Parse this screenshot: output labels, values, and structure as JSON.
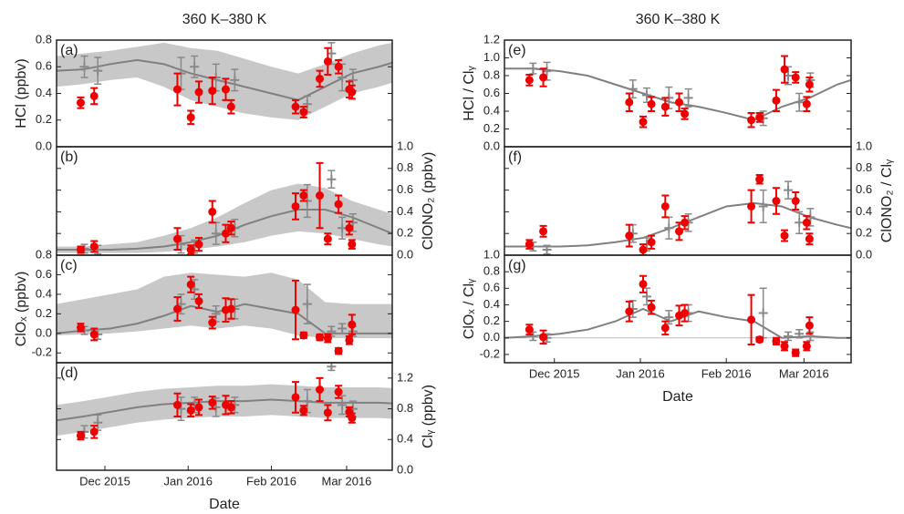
{
  "chart_data": [
    {
      "type": "scatter",
      "title": "360 K–380 K",
      "panel_label": "(a)",
      "ylabel": "HCl (ppbv)",
      "axis_side": "left",
      "xlim": [
        0,
        125
      ],
      "ylim": [
        0,
        0.8
      ],
      "yticks": [
        {
          "value": 0,
          "label": "0.0"
        },
        0.2,
        0.4,
        0.6,
        0.8
      ],
      "model": {
        "color": "#808080",
        "band_color": "#c8c8c8",
        "x": [
          0,
          10,
          20,
          30,
          40,
          50,
          60,
          70,
          80,
          90,
          100,
          110,
          120,
          125
        ],
        "values": [
          0.57,
          0.58,
          0.62,
          0.65,
          0.62,
          0.55,
          0.5,
          0.45,
          0.4,
          0.35,
          0.45,
          0.55,
          0.6,
          0.63
        ],
        "lower": [
          0.45,
          0.47,
          0.5,
          0.52,
          0.45,
          0.35,
          0.3,
          0.25,
          0.22,
          0.2,
          0.3,
          0.4,
          0.45,
          0.48
        ],
        "upper": [
          0.68,
          0.7,
          0.72,
          0.75,
          0.78,
          0.74,
          0.72,
          0.66,
          0.6,
          0.55,
          0.62,
          0.7,
          0.76,
          0.78
        ]
      },
      "obs": {
        "color": "#ee0000",
        "x": [
          9,
          14,
          45,
          50,
          53,
          58,
          63,
          65,
          89,
          92,
          98,
          101,
          105,
          109,
          110
        ],
        "values": [
          0.33,
          0.38,
          0.43,
          0.22,
          0.41,
          0.42,
          0.43,
          0.3,
          0.3,
          0.26,
          0.51,
          0.64,
          0.6,
          0.43,
          0.41
        ],
        "errors": [
          0.04,
          0.06,
          0.12,
          0.05,
          0.08,
          0.1,
          0.08,
          0.05,
          0.05,
          0.04,
          0.06,
          0.1,
          0.05,
          0.06,
          0.05
        ]
      },
      "obs2": {
        "color": "#888888",
        "x": [
          9,
          14,
          45,
          50,
          58,
          65,
          92,
          101,
          105,
          109
        ],
        "values": [
          0.6,
          0.57,
          0.55,
          0.6,
          0.52,
          0.5,
          0.32,
          0.7,
          0.52,
          0.5
        ],
        "errors": [
          0.08,
          0.1,
          0.12,
          0.08,
          0.1,
          0.08,
          0.06,
          0.08,
          0.1,
          0.08
        ]
      }
    },
    {
      "type": "scatter",
      "panel_label": "(b)",
      "ylabel": "ClONO₂ (ppbv)",
      "axis_side": "right",
      "xlim": [
        0,
        125
      ],
      "ylim": [
        0,
        1.0
      ],
      "yticks": [
        {
          "value": 0,
          "label": "0.0"
        },
        0.2,
        0.4,
        0.6,
        0.8,
        {
          "value": 1,
          "label": "1.0"
        }
      ],
      "model": {
        "color": "#808080",
        "band_color": "#c8c8c8",
        "x": [
          0,
          10,
          20,
          30,
          40,
          50,
          60,
          70,
          80,
          90,
          100,
          110,
          120,
          125
        ],
        "values": [
          0.05,
          0.05,
          0.05,
          0.06,
          0.08,
          0.12,
          0.18,
          0.28,
          0.36,
          0.42,
          0.42,
          0.35,
          0.25,
          0.2
        ],
        "lower": [
          0.02,
          0.02,
          0.02,
          0.02,
          0.03,
          0.05,
          0.08,
          0.12,
          0.18,
          0.22,
          0.2,
          0.15,
          0.1,
          0.08
        ],
        "upper": [
          0.08,
          0.08,
          0.1,
          0.12,
          0.18,
          0.25,
          0.35,
          0.48,
          0.6,
          0.66,
          0.62,
          0.5,
          0.42,
          0.38
        ]
      },
      "obs": {
        "color": "#ee0000",
        "x": [
          9,
          14,
          45,
          50,
          53,
          58,
          63,
          65,
          89,
          92,
          98,
          101,
          105,
          109,
          110
        ],
        "values": [
          0.05,
          0.08,
          0.15,
          0.05,
          0.1,
          0.4,
          0.2,
          0.25,
          0.45,
          0.55,
          0.55,
          0.15,
          0.47,
          0.25,
          0.1
        ],
        "errors": [
          0.03,
          0.05,
          0.1,
          0.04,
          0.06,
          0.1,
          0.08,
          0.06,
          0.12,
          0.05,
          0.3,
          0.05,
          0.08,
          0.06,
          0.04
        ]
      },
      "obs2": {
        "color": "#888888",
        "x": [
          9,
          14,
          45,
          50,
          58,
          65,
          92,
          101,
          105,
          109
        ],
        "values": [
          0.06,
          0.05,
          0.1,
          0.08,
          0.2,
          0.25,
          0.5,
          0.7,
          0.25,
          0.3
        ],
        "errors": [
          0.04,
          0.04,
          0.08,
          0.06,
          0.1,
          0.08,
          0.15,
          0.08,
          0.1,
          0.08
        ]
      }
    },
    {
      "type": "scatter",
      "panel_label": "(c)",
      "ylabel": "ClOₓ (ppbv)",
      "axis_side": "left",
      "xlim": [
        0,
        125
      ],
      "ylim": [
        -0.3,
        0.8
      ],
      "yticks": [
        -0.2,
        {
          "value": 0,
          "label": "0.0"
        },
        0.2,
        0.4,
        0.6,
        0.8
      ],
      "model": {
        "color": "#808080",
        "band_color": "#c8c8c8",
        "x": [
          0,
          10,
          20,
          30,
          40,
          50,
          60,
          70,
          80,
          90,
          100,
          110,
          120,
          125
        ],
        "values": [
          0,
          0.03,
          0.05,
          0.1,
          0.18,
          0.28,
          0.22,
          0.3,
          0.25,
          0.2,
          0,
          0,
          0,
          0
        ],
        "lower": [
          -0.02,
          -0.01,
          0,
          0.02,
          0.05,
          0.08,
          0.05,
          0.08,
          0.05,
          -0.02,
          -0.05,
          -0.05,
          -0.05,
          -0.05
        ],
        "upper": [
          0.3,
          0.35,
          0.4,
          0.45,
          0.58,
          0.62,
          0.6,
          0.58,
          0.62,
          0.55,
          0.32,
          0.3,
          0.3,
          0.3
        ]
      },
      "obs": {
        "color": "#ee0000",
        "x": [
          9,
          14,
          45,
          50,
          53,
          58,
          63,
          65,
          89,
          92,
          98,
          101,
          105,
          109,
          110
        ],
        "values": [
          0.06,
          -0.01,
          0.25,
          0.5,
          0.33,
          0.11,
          0.24,
          0.25,
          0.24,
          -0.02,
          -0.04,
          -0.05,
          -0.18,
          -0.07,
          0.09
        ],
        "errors": [
          0.04,
          0.06,
          0.12,
          0.08,
          0.07,
          0.06,
          0.12,
          0.1,
          0.3,
          0.03,
          0.03,
          0.04,
          0.03,
          0.04,
          0.1
        ]
      },
      "obs2": {
        "color": "#888888",
        "x": [
          9,
          14,
          45,
          50,
          58,
          65,
          92,
          101,
          105,
          109
        ],
        "values": [
          0.03,
          -0.01,
          0.3,
          0.45,
          0.2,
          0.25,
          0.3,
          0.02,
          0.05,
          0.02
        ],
        "errors": [
          0.04,
          0.05,
          0.1,
          0.1,
          0.08,
          0.1,
          0.2,
          0.05,
          0.05,
          0.05
        ]
      }
    },
    {
      "type": "scatter",
      "panel_label": "(d)",
      "ylabel": "Clᵧ (ppbv)",
      "axis_side": "right",
      "xlabel": "Date",
      "xlim": [
        0,
        125
      ],
      "xticks": [
        {
          "value": 18,
          "label": "Dec 2015"
        },
        {
          "value": 49,
          "label": "Jan 2016"
        },
        {
          "value": 80,
          "label": "Feb 2016"
        },
        {
          "value": 108,
          "label": "Mar 2016"
        }
      ],
      "ylim": [
        0,
        1.4
      ],
      "yticks": [
        {
          "value": 0,
          "label": "0.0"
        },
        0.4,
        0.8,
        1.2
      ],
      "model": {
        "color": "#808080",
        "band_color": "#c8c8c8",
        "x": [
          0,
          10,
          20,
          30,
          40,
          50,
          60,
          70,
          80,
          90,
          100,
          110,
          120,
          125
        ],
        "values": [
          0.65,
          0.7,
          0.76,
          0.82,
          0.86,
          0.88,
          0.9,
          0.9,
          0.92,
          0.9,
          0.88,
          0.88,
          0.88,
          0.87
        ],
        "lower": [
          0.45,
          0.5,
          0.56,
          0.62,
          0.66,
          0.68,
          0.7,
          0.7,
          0.72,
          0.7,
          0.68,
          0.68,
          0.68,
          0.67
        ],
        "upper": [
          0.85,
          0.9,
          0.96,
          1.02,
          1.06,
          1.08,
          1.1,
          1.1,
          1.12,
          1.1,
          1.08,
          1.08,
          1.08,
          1.07
        ]
      },
      "obs": {
        "color": "#ee0000",
        "x": [
          9,
          14,
          45,
          50,
          53,
          58,
          63,
          65,
          89,
          92,
          98,
          101,
          105,
          109,
          110
        ],
        "values": [
          0.45,
          0.5,
          0.85,
          0.78,
          0.82,
          0.88,
          0.85,
          0.82,
          0.95,
          0.78,
          1.05,
          0.75,
          1.02,
          0.76,
          0.68
        ],
        "errors": [
          0.05,
          0.08,
          0.15,
          0.08,
          0.1,
          0.08,
          0.12,
          0.08,
          0.2,
          0.06,
          0.15,
          0.1,
          0.08,
          0.06,
          0.06
        ]
      },
      "obs2": {
        "color": "#888888",
        "x": [
          9,
          14,
          45,
          50,
          58,
          65,
          92,
          101,
          105,
          109
        ],
        "values": [
          0.5,
          0.62,
          0.8,
          0.85,
          0.82,
          0.85,
          0.9,
          1.35,
          0.85,
          0.8
        ],
        "errors": [
          0.08,
          0.1,
          0.15,
          0.1,
          0.12,
          0.1,
          0.15,
          0.05,
          0.12,
          0.1
        ]
      }
    },
    {
      "type": "scatter",
      "title": "360 K–380 K",
      "panel_label": "(e)",
      "ylabel": "HCl / Clᵧ",
      "axis_side": "left",
      "xlim": [
        0,
        125
      ],
      "ylim": [
        0,
        1.2
      ],
      "yticks": [
        {
          "value": 0,
          "label": "0.0"
        },
        0.2,
        0.4,
        0.6,
        0.8,
        {
          "value": 1,
          "label": "1.0"
        },
        1.2
      ],
      "model": {
        "color": "#808080",
        "x": [
          0,
          10,
          20,
          30,
          40,
          50,
          60,
          70,
          80,
          90,
          100,
          110,
          120,
          125
        ],
        "values": [
          0.88,
          0.88,
          0.85,
          0.8,
          0.7,
          0.6,
          0.5,
          0.45,
          0.38,
          0.3,
          0.45,
          0.55,
          0.7,
          0.75
        ]
      },
      "obs": {
        "color": "#ee0000",
        "x": [
          9,
          14,
          45,
          50,
          53,
          58,
          63,
          65,
          89,
          92,
          98,
          101,
          105,
          109,
          110
        ],
        "values": [
          0.75,
          0.78,
          0.5,
          0.28,
          0.48,
          0.45,
          0.5,
          0.37,
          0.3,
          0.33,
          0.52,
          0.87,
          0.78,
          0.48,
          0.7
        ],
        "errors": [
          0.06,
          0.1,
          0.1,
          0.06,
          0.08,
          0.1,
          0.1,
          0.06,
          0.08,
          0.05,
          0.12,
          0.15,
          0.06,
          0.08,
          0.08
        ]
      },
      "obs2": {
        "color": "#888888",
        "x": [
          9,
          14,
          45,
          50,
          58,
          65,
          92,
          101,
          105,
          109
        ],
        "values": [
          0.88,
          0.85,
          0.65,
          0.58,
          0.55,
          0.55,
          0.32,
          0.8,
          0.5,
          0.75
        ],
        "errors": [
          0.06,
          0.1,
          0.1,
          0.08,
          0.12,
          0.1,
          0.08,
          0.1,
          0.1,
          0.08
        ]
      }
    },
    {
      "type": "scatter",
      "panel_label": "(f)",
      "ylabel": "ClONO₂ / Clᵧ",
      "axis_side": "right",
      "xlim": [
        0,
        125
      ],
      "ylim": [
        0,
        1.0
      ],
      "yticks": [
        {
          "value": 0,
          "label": "0.0"
        },
        0.2,
        0.4,
        0.6,
        0.8,
        {
          "value": 1,
          "label": "1.0"
        }
      ],
      "model": {
        "color": "#808080",
        "x": [
          0,
          10,
          20,
          30,
          40,
          50,
          60,
          70,
          80,
          90,
          100,
          110,
          120,
          125
        ],
        "values": [
          0.08,
          0.08,
          0.08,
          0.09,
          0.12,
          0.16,
          0.25,
          0.35,
          0.45,
          0.48,
          0.45,
          0.35,
          0.28,
          0.25
        ]
      },
      "obs": {
        "color": "#ee0000",
        "x": [
          9,
          14,
          45,
          50,
          53,
          58,
          63,
          65,
          89,
          92,
          98,
          101,
          105,
          109,
          110
        ],
        "values": [
          0.1,
          0.22,
          0.18,
          0.05,
          0.12,
          0.45,
          0.22,
          0.3,
          0.45,
          0.7,
          0.5,
          0.18,
          0.5,
          0.3,
          0.15
        ],
        "errors": [
          0.04,
          0.05,
          0.1,
          0.05,
          0.06,
          0.1,
          0.08,
          0.06,
          0.15,
          0.04,
          0.12,
          0.05,
          0.08,
          0.06,
          0.05
        ]
      },
      "obs2": {
        "color": "#888888",
        "x": [
          9,
          14,
          45,
          50,
          58,
          65,
          92,
          101,
          105,
          109
        ],
        "values": [
          0.08,
          0.05,
          0.2,
          0.1,
          0.25,
          0.3,
          0.45,
          0.6,
          0.3,
          0.35
        ],
        "errors": [
          0.04,
          0.04,
          0.08,
          0.06,
          0.1,
          0.08,
          0.15,
          0.08,
          0.1,
          0.08
        ]
      }
    },
    {
      "type": "scatter",
      "panel_label": "(g)",
      "ylabel": "ClOₓ / Clᵧ",
      "axis_side": "left",
      "xlabel": "Date",
      "zero_line": true,
      "xlim": [
        0,
        125
      ],
      "xticks": [
        {
          "value": 18,
          "label": "Dec 2015"
        },
        {
          "value": 49,
          "label": "Jan 2016"
        },
        {
          "value": 80,
          "label": "Feb 2016"
        },
        {
          "value": 108,
          "label": "Mar 2016"
        }
      ],
      "ylim": [
        -0.3,
        1.0
      ],
      "yticks": [
        -0.2,
        {
          "value": 0,
          "label": "0.0"
        },
        0.2,
        0.4,
        0.6,
        0.8,
        {
          "value": 1,
          "label": "1.0"
        }
      ],
      "model": {
        "color": "#808080",
        "x": [
          0,
          10,
          20,
          30,
          40,
          50,
          60,
          70,
          80,
          90,
          100,
          110,
          120,
          125
        ],
        "values": [
          0,
          0.02,
          0.05,
          0.1,
          0.2,
          0.35,
          0.2,
          0.32,
          0.25,
          0.2,
          0,
          0.02,
          0,
          0
        ]
      },
      "obs": {
        "color": "#ee0000",
        "x": [
          9,
          14,
          45,
          50,
          53,
          58,
          63,
          65,
          89,
          92,
          98,
          101,
          105,
          109,
          110
        ],
        "values": [
          0.1,
          0.01,
          0.32,
          0.65,
          0.37,
          0.12,
          0.27,
          0.3,
          0.22,
          -0.02,
          -0.04,
          -0.1,
          -0.18,
          -0.1,
          0.15
        ],
        "errors": [
          0.06,
          0.08,
          0.12,
          0.1,
          0.08,
          0.08,
          0.12,
          0.1,
          0.3,
          0.03,
          0.04,
          0.05,
          0.04,
          0.05,
          0.1
        ]
      },
      "obs2": {
        "color": "#888888",
        "x": [
          9,
          14,
          45,
          50,
          58,
          65,
          92,
          101,
          105,
          109
        ],
        "values": [
          0.02,
          0,
          0.35,
          0.5,
          0.25,
          0.3,
          0.3,
          0.02,
          0.05,
          0.02
        ],
        "errors": [
          0.05,
          0.05,
          0.1,
          0.1,
          0.08,
          0.1,
          0.3,
          0.05,
          0.05,
          0.05
        ]
      }
    }
  ]
}
